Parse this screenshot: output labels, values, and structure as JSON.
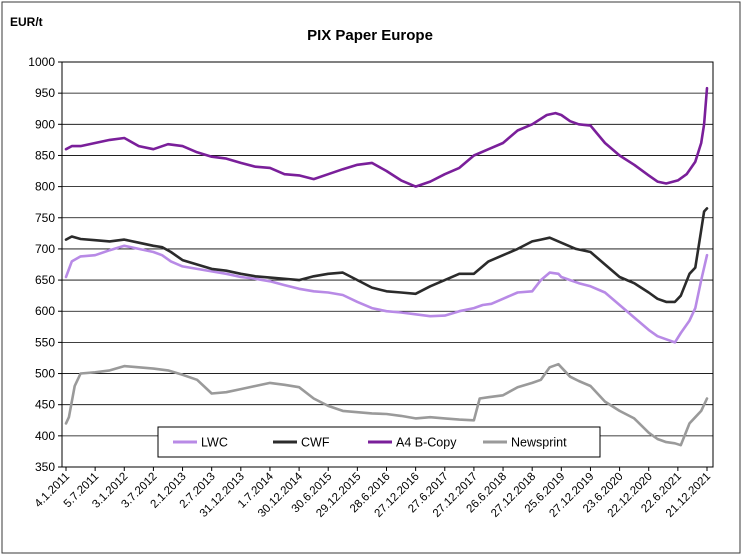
{
  "chart_data": {
    "type": "line",
    "title": "PIX Paper Europe",
    "ylabel": "EUR/t",
    "xlabel": "",
    "ylim": [
      350,
      1000
    ],
    "yticks": [
      350,
      400,
      450,
      500,
      550,
      600,
      650,
      700,
      750,
      800,
      850,
      900,
      950,
      1000
    ],
    "grid": true,
    "legend_placement": "bottom-center",
    "x_tick_labels": [
      "4.1.2011",
      "5.7.2011",
      "3.1.2012",
      "3.7.2012",
      "2.1.2013",
      "2.7.2013",
      "31.12.2013",
      "1.7.2014",
      "30.12.2014",
      "30.6.2015",
      "29.12.2015",
      "28.6.2016",
      "27.12.2016",
      "27.6.2017",
      "27.12.2017",
      "26.6.2018",
      "27.12.2018",
      "25.6.2019",
      "27.12.2019",
      "23.6.2020",
      "22.12.2020",
      "22.6.2021",
      "21.12.2021"
    ],
    "x_index_range": [
      0,
      22
    ],
    "series": [
      {
        "name": "LWC",
        "color": "#b88ae6",
        "x": [
          0,
          0.2,
          0.5,
          1,
          1.5,
          2,
          2.5,
          3,
          3.3,
          3.6,
          4,
          4.5,
          5,
          5.5,
          6,
          6.5,
          7,
          7.5,
          8,
          8.5,
          9,
          9.5,
          10,
          10.5,
          11,
          11.5,
          12,
          12.5,
          13,
          13.5,
          14,
          14.3,
          14.6,
          15,
          15.5,
          16,
          16.3,
          16.6,
          16.9,
          17,
          17.3,
          17.6,
          18,
          18.5,
          19,
          19.5,
          20,
          20.3,
          20.6,
          20.9,
          21.1,
          21.4,
          21.6,
          21.8,
          22
        ],
        "values": [
          655,
          680,
          688,
          690,
          698,
          705,
          700,
          695,
          690,
          680,
          672,
          668,
          664,
          660,
          655,
          652,
          648,
          642,
          636,
          632,
          630,
          626,
          615,
          605,
          600,
          598,
          595,
          592,
          593,
          600,
          605,
          610,
          612,
          620,
          630,
          632,
          650,
          662,
          660,
          655,
          650,
          645,
          640,
          630,
          610,
          590,
          570,
          560,
          555,
          550,
          565,
          585,
          605,
          650,
          690
        ]
      },
      {
        "name": "CWF",
        "color": "#2b2b2b",
        "x": [
          0,
          0.2,
          0.5,
          1,
          1.5,
          2,
          2.5,
          3,
          3.3,
          3.6,
          4,
          4.5,
          5,
          5.5,
          6,
          6.5,
          7,
          7.5,
          8,
          8.5,
          9,
          9.5,
          10,
          10.5,
          11,
          11.5,
          12,
          12.5,
          13,
          13.5,
          14,
          14.5,
          15,
          15.5,
          16,
          16.3,
          16.6,
          17,
          17.5,
          18,
          18.5,
          19,
          19.5,
          20,
          20.3,
          20.6,
          20.9,
          21.1,
          21.4,
          21.6,
          21.8,
          21.9,
          22
        ],
        "values": [
          715,
          720,
          716,
          714,
          712,
          715,
          710,
          705,
          703,
          695,
          682,
          675,
          668,
          665,
          660,
          656,
          654,
          652,
          650,
          656,
          660,
          662,
          650,
          638,
          632,
          630,
          628,
          640,
          650,
          660,
          660,
          680,
          690,
          700,
          712,
          715,
          718,
          710,
          700,
          695,
          675,
          655,
          645,
          630,
          620,
          615,
          615,
          625,
          660,
          670,
          730,
          760,
          765
        ]
      },
      {
        "name": "A4 B-Copy",
        "color": "#7a1f9a",
        "x": [
          0,
          0.2,
          0.5,
          1,
          1.5,
          2,
          2.5,
          3,
          3.5,
          4,
          4.5,
          5,
          5.5,
          6,
          6.5,
          7,
          7.5,
          8,
          8.5,
          9,
          9.5,
          10,
          10.5,
          11,
          11.5,
          12,
          12.5,
          13,
          13.5,
          14,
          14.5,
          15,
          15.5,
          16,
          16.5,
          16.8,
          17,
          17.3,
          17.6,
          18,
          18.5,
          19,
          19.5,
          20,
          20.3,
          20.6,
          21,
          21.3,
          21.6,
          21.8,
          21.9,
          22
        ],
        "values": [
          860,
          865,
          865,
          870,
          875,
          878,
          865,
          860,
          868,
          865,
          855,
          848,
          845,
          838,
          832,
          830,
          820,
          818,
          812,
          820,
          828,
          835,
          838,
          825,
          810,
          800,
          808,
          820,
          830,
          850,
          860,
          870,
          890,
          900,
          915,
          918,
          915,
          905,
          900,
          898,
          870,
          850,
          835,
          818,
          808,
          805,
          810,
          820,
          840,
          870,
          900,
          958
        ]
      },
      {
        "name": "Newsprint",
        "color": "#9a9a9a",
        "x": [
          0,
          0.1,
          0.3,
          0.5,
          1,
          1.5,
          2,
          2.5,
          3,
          3.5,
          4,
          4.5,
          5,
          5.5,
          6,
          6.5,
          7,
          7.5,
          8,
          8.5,
          9,
          9.5,
          10,
          10.5,
          11,
          11.5,
          12,
          12.5,
          13,
          13.5,
          14,
          14.2,
          14.5,
          15,
          15.5,
          16,
          16.3,
          16.6,
          16.9,
          17,
          17.3,
          17.6,
          18,
          18.5,
          19,
          19.5,
          20,
          20.3,
          20.6,
          20.9,
          21.1,
          21.4,
          21.6,
          21.8,
          22
        ],
        "values": [
          420,
          430,
          480,
          500,
          502,
          505,
          512,
          510,
          508,
          505,
          498,
          490,
          468,
          470,
          475,
          480,
          485,
          482,
          478,
          460,
          448,
          440,
          438,
          436,
          435,
          432,
          428,
          430,
          428,
          426,
          425,
          460,
          462,
          465,
          478,
          485,
          490,
          510,
          515,
          510,
          495,
          488,
          480,
          455,
          440,
          428,
          405,
          395,
          390,
          388,
          385,
          420,
          430,
          440,
          460
        ]
      }
    ]
  }
}
